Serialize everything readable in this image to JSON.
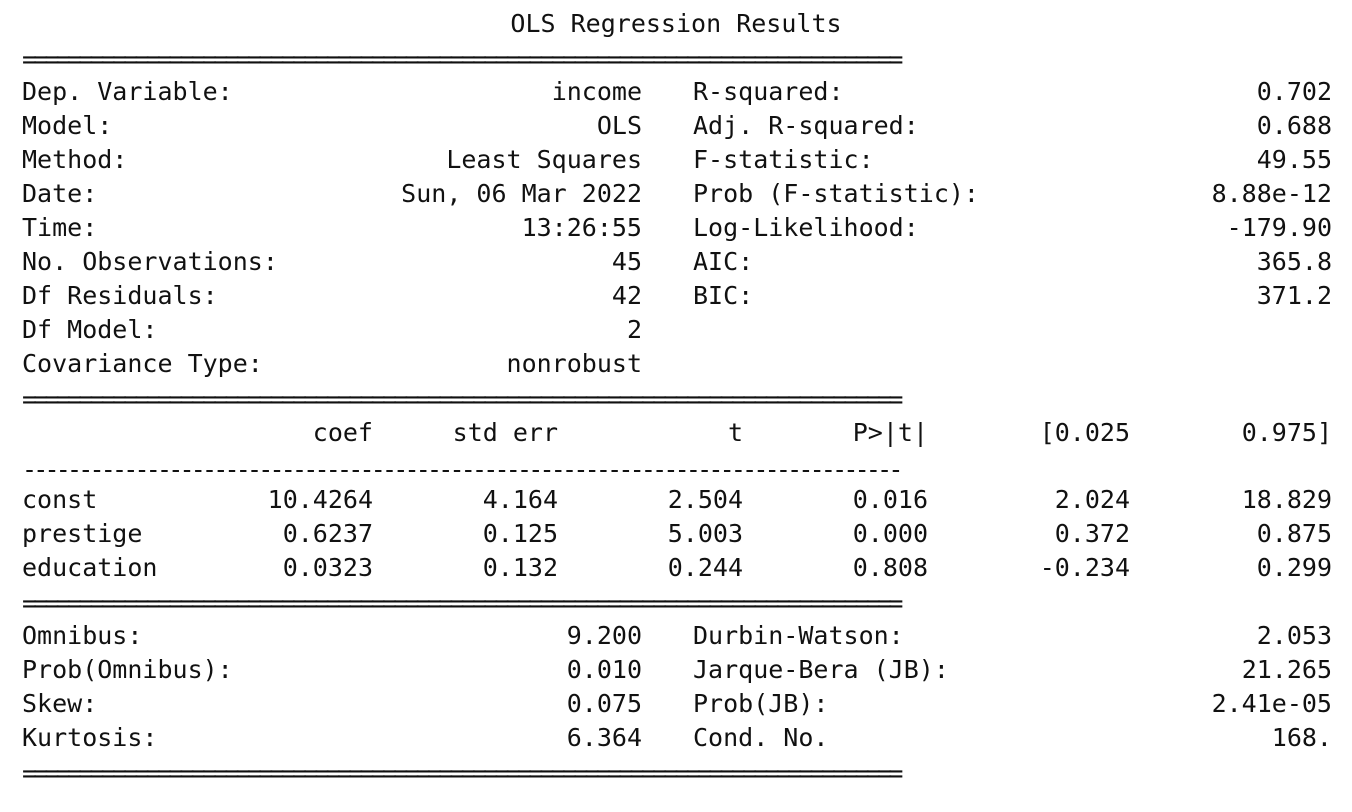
{
  "title": "OLS Regression Results",
  "separators": {
    "double": "==============================================================================",
    "single": "------------------------------------------------------------------------------"
  },
  "summary": {
    "left": [
      {
        "label": "Dep. Variable:",
        "value": "income"
      },
      {
        "label": "Model:",
        "value": "OLS"
      },
      {
        "label": "Method:",
        "value": "Least Squares"
      },
      {
        "label": "Date:",
        "value": "Sun, 06 Mar 2022"
      },
      {
        "label": "Time:",
        "value": "13:26:55"
      },
      {
        "label": "No. Observations:",
        "value": "45"
      },
      {
        "label": "Df Residuals:",
        "value": "42"
      },
      {
        "label": "Df Model:",
        "value": "2"
      },
      {
        "label": "Covariance Type:",
        "value": "nonrobust"
      }
    ],
    "right": [
      {
        "label": "R-squared:",
        "value": "0.702"
      },
      {
        "label": "Adj. R-squared:",
        "value": "0.688"
      },
      {
        "label": "F-statistic:",
        "value": "49.55"
      },
      {
        "label": "Prob (F-statistic):",
        "value": "8.88e-12"
      },
      {
        "label": "Log-Likelihood:",
        "value": "-179.90"
      },
      {
        "label": "AIC:",
        "value": "365.8"
      },
      {
        "label": "BIC:",
        "value": "371.2"
      }
    ]
  },
  "coef_table": {
    "headers": [
      "coef",
      "std err",
      "t",
      "P>|t|",
      "[0.025",
      "0.975]"
    ],
    "rows": [
      {
        "name": "const",
        "values": [
          "10.4264",
          "4.164",
          "2.504",
          "0.016",
          "2.024",
          "18.829"
        ]
      },
      {
        "name": "prestige",
        "values": [
          "0.6237",
          "0.125",
          "5.003",
          "0.000",
          "0.372",
          "0.875"
        ]
      },
      {
        "name": "education",
        "values": [
          "0.0323",
          "0.132",
          "0.244",
          "0.808",
          "-0.234",
          "0.299"
        ]
      }
    ]
  },
  "diagnostics": {
    "left": [
      {
        "label": "Omnibus:",
        "value": "9.200"
      },
      {
        "label": "Prob(Omnibus):",
        "value": "0.010"
      },
      {
        "label": "Skew:",
        "value": "0.075"
      },
      {
        "label": "Kurtosis:",
        "value": "6.364"
      }
    ],
    "right": [
      {
        "label": "Durbin-Watson:",
        "value": "2.053"
      },
      {
        "label": "Jarque-Bera (JB):",
        "value": "21.265"
      },
      {
        "label": "Prob(JB):",
        "value": "2.41e-05"
      },
      {
        "label": "Cond. No.",
        "value": "168."
      }
    ]
  }
}
